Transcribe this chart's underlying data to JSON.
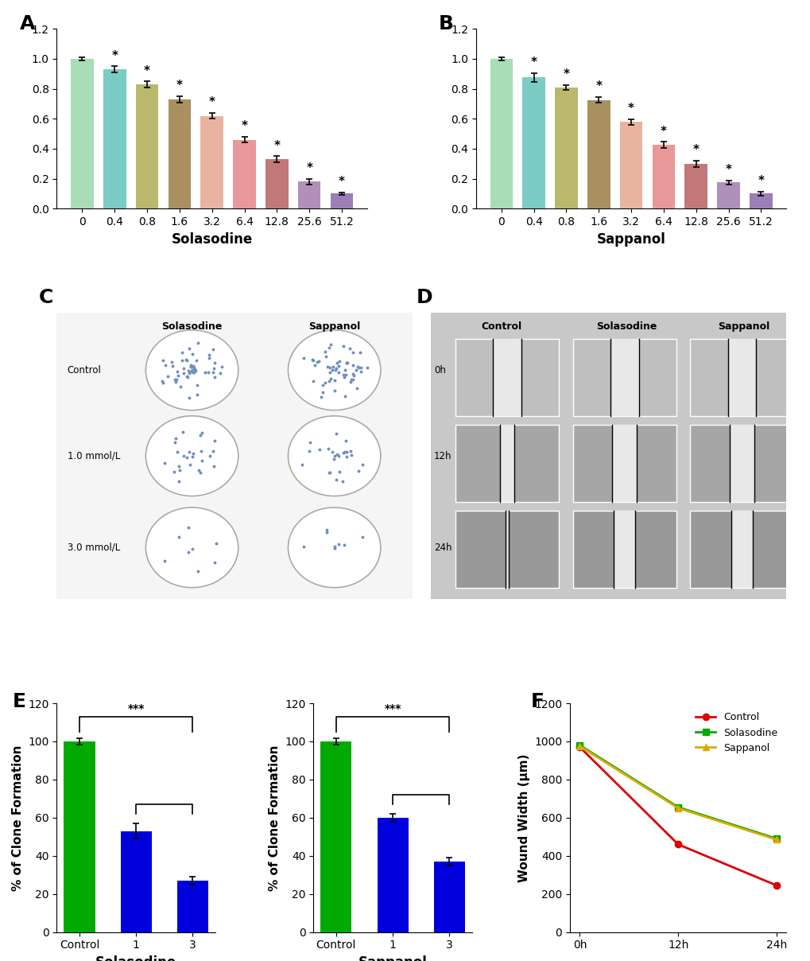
{
  "panel_A": {
    "categories": [
      "0",
      "0.4",
      "0.8",
      "1.6",
      "3.2",
      "6.4",
      "12.8",
      "25.6",
      "51.2"
    ],
    "values": [
      1.0,
      0.93,
      0.83,
      0.73,
      0.62,
      0.46,
      0.33,
      0.18,
      0.1
    ],
    "errors": [
      0.01,
      0.02,
      0.02,
      0.02,
      0.02,
      0.02,
      0.02,
      0.02,
      0.01
    ],
    "colors": [
      "#a8ddb5",
      "#7bccc4",
      "#bab86c",
      "#a89060",
      "#e8b4a0",
      "#e89898",
      "#c07878",
      "#b090b8",
      "#9b7db8"
    ],
    "xlabel": "Solasodine",
    "ylim": [
      0,
      1.2
    ],
    "yticks": [
      0.0,
      0.2,
      0.4,
      0.6,
      0.8,
      1.0,
      1.2
    ]
  },
  "panel_B": {
    "categories": [
      "0",
      "0.4",
      "0.8",
      "1.6",
      "3.2",
      "6.4",
      "12.8",
      "25.6",
      "51.2"
    ],
    "values": [
      1.0,
      0.875,
      0.81,
      0.725,
      0.578,
      0.425,
      0.3,
      0.175,
      0.1
    ],
    "errors": [
      0.01,
      0.03,
      0.015,
      0.02,
      0.02,
      0.02,
      0.02,
      0.015,
      0.015
    ],
    "colors": [
      "#a8ddb5",
      "#7bccc4",
      "#bab86c",
      "#a89060",
      "#e8b4a0",
      "#e89898",
      "#c07878",
      "#b090b8",
      "#9b7db8"
    ],
    "xlabel": "Sappanol",
    "ylim": [
      0,
      1.2
    ],
    "yticks": [
      0.0,
      0.2,
      0.4,
      0.6,
      0.8,
      1.0,
      1.2
    ]
  },
  "panel_E_sol": {
    "categories": [
      "Control",
      "1",
      "3"
    ],
    "values": [
      100,
      53,
      27
    ],
    "errors": [
      1.5,
      4,
      2
    ],
    "colors": [
      "#00aa00",
      "#0000dd",
      "#0000dd"
    ],
    "xlabel": "Solasodine",
    "ylabel": "% of Clone Formation",
    "ylim": [
      0,
      120
    ],
    "yticks": [
      0,
      20,
      40,
      60,
      80,
      100,
      120
    ]
  },
  "panel_E_sap": {
    "categories": [
      "Control",
      "1",
      "3"
    ],
    "values": [
      100,
      60,
      37
    ],
    "errors": [
      1.5,
      2,
      2
    ],
    "colors": [
      "#00aa00",
      "#0000dd",
      "#0000dd"
    ],
    "xlabel": "Sappanol",
    "ylabel": "% of Clone Formation",
    "ylim": [
      0,
      120
    ],
    "yticks": [
      0,
      20,
      40,
      60,
      80,
      100,
      120
    ]
  },
  "panel_F": {
    "timepoints": [
      "0h",
      "12h",
      "24h"
    ],
    "control": [
      970,
      460,
      245
    ],
    "solasodine": [
      980,
      655,
      490
    ],
    "sappanol": [
      975,
      650,
      485
    ],
    "control_color": "#dd0000",
    "solasodine_color": "#00aa00",
    "sappanol_color": "#ddaa00",
    "ylabel": "Wound Width (μm)",
    "ylim": [
      0,
      1200
    ],
    "yticks": [
      0,
      200,
      400,
      600,
      800,
      1000,
      1200
    ]
  },
  "panel_labels_fontsize": 18,
  "axis_fontsize": 11,
  "tick_fontsize": 10,
  "bg_color": "#ffffff"
}
